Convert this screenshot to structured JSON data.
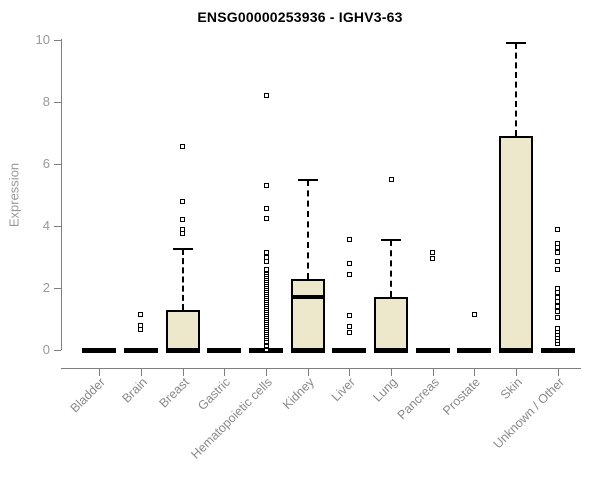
{
  "colors": {
    "box_fill": "#EDE7CC",
    "box_border": "#000000",
    "axis": "#7f7f7f",
    "tick_label": "#999999",
    "x_label": "#8a8a8a",
    "title": "#000000",
    "background": "#ffffff"
  },
  "chart_data": {
    "type": "boxplot",
    "title": "ENSG00000253936 - IGHV3-63",
    "xlabel": "",
    "ylabel": "Expression",
    "ylim": [
      0,
      10
    ],
    "yticks": [
      0,
      2,
      4,
      6,
      8,
      10
    ],
    "grid": false,
    "legend": false,
    "categories": [
      "Bladder",
      "Brain",
      "Breast",
      "Gastric",
      "Hematopoietic cells",
      "Kidney",
      "Liver",
      "Lung",
      "Pancreas",
      "Prostate",
      "Skin",
      "Unknown / Other"
    ],
    "series": [
      {
        "category": "Bladder",
        "whisker_low": 0,
        "q1": 0,
        "median": 0,
        "q3": 0,
        "whisker_high": 0,
        "outliers": []
      },
      {
        "category": "Brain",
        "whisker_low": 0,
        "q1": 0,
        "median": 0,
        "q3": 0,
        "whisker_high": 0,
        "outliers": [
          0.65,
          0.78,
          1.15
        ]
      },
      {
        "category": "Breast",
        "whisker_low": 0,
        "q1": 0,
        "median": 0,
        "q3": 1.3,
        "whisker_high": 3.25,
        "outliers": [
          3.75,
          3.9,
          4.2,
          4.8,
          6.55
        ]
      },
      {
        "category": "Gastric",
        "whisker_low": 0,
        "q1": 0,
        "median": 0,
        "q3": 0,
        "whisker_high": 0,
        "outliers": []
      },
      {
        "category": "Hematopoietic cells",
        "whisker_low": 0,
        "q1": 0,
        "median": 0,
        "q3": 0,
        "whisker_high": 0,
        "outliers": [
          0.03,
          0.1,
          0.16,
          0.23,
          0.29,
          0.36,
          0.42,
          0.49,
          0.55,
          0.62,
          0.68,
          0.75,
          0.81,
          0.88,
          0.94,
          1.01,
          1.07,
          1.14,
          1.2,
          1.27,
          1.33,
          1.4,
          1.46,
          1.53,
          1.59,
          1.66,
          1.72,
          1.79,
          1.85,
          1.92,
          1.98,
          2.05,
          2.11,
          2.18,
          2.24,
          2.31,
          2.37,
          2.44,
          2.5,
          2.55,
          2.6,
          2.85,
          3.0,
          3.15,
          4.25,
          4.55,
          5.3,
          8.2
        ]
      },
      {
        "category": "Kidney",
        "whisker_low": 0,
        "q1": 0,
        "median": 1.7,
        "q3": 2.3,
        "whisker_high": 5.5,
        "outliers": []
      },
      {
        "category": "Liver",
        "whisker_low": 0,
        "q1": 0,
        "median": 0,
        "q3": 0,
        "whisker_high": 0,
        "outliers": [
          0.58,
          0.75,
          1.1,
          2.45,
          2.78,
          3.55
        ]
      },
      {
        "category": "Lung",
        "whisker_low": 0,
        "q1": 0,
        "median": 0,
        "q3": 1.7,
        "whisker_high": 3.55,
        "outliers": [
          5.5
        ]
      },
      {
        "category": "Pancreas",
        "whisker_low": 0,
        "q1": 0,
        "median": 0,
        "q3": 0,
        "whisker_high": 0,
        "outliers": [
          2.95,
          3.15
        ]
      },
      {
        "category": "Prostate",
        "whisker_low": 0,
        "q1": 0,
        "median": 0,
        "q3": 0,
        "whisker_high": 0,
        "outliers": [
          1.15
        ]
      },
      {
        "category": "Skin",
        "whisker_low": 0,
        "q1": 0,
        "median": 0,
        "q3": 6.9,
        "whisker_high": 9.9,
        "outliers": []
      },
      {
        "category": "Unknown / Other",
        "whisker_low": 0,
        "q1": 0,
        "median": 0,
        "q3": 0,
        "whisker_high": 0,
        "outliers": [
          0.22,
          0.3,
          0.4,
          0.5,
          0.6,
          0.7,
          1.05,
          1.25,
          1.4,
          1.55,
          1.7,
          1.85,
          2.0,
          2.6,
          2.85,
          3.15,
          3.3,
          3.45,
          3.9
        ]
      }
    ]
  }
}
